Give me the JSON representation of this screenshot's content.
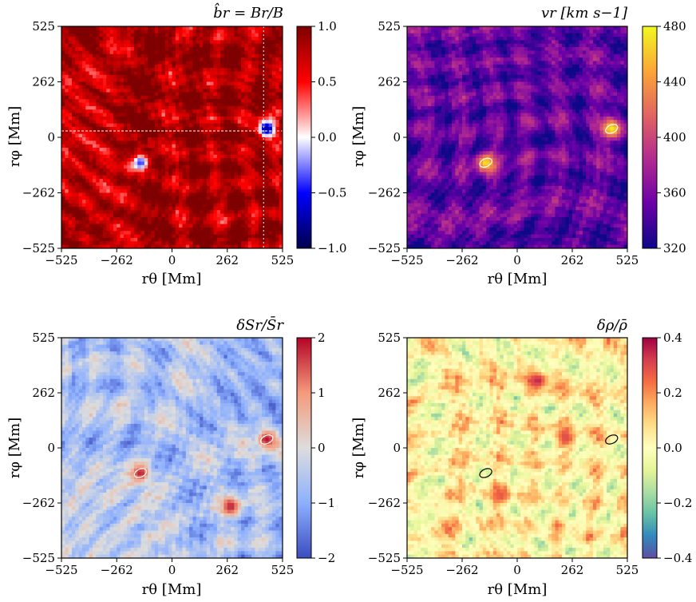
{
  "figure": {
    "panels": [
      {
        "title": "b̂r = Br/B",
        "xlabel": "rθ [Mm]",
        "ylabel": "rφ [Mm]",
        "colorbar": {
          "colormap": "seismic",
          "colors": [
            "#00004c",
            "#0000ff",
            "#ffffff",
            "#ff0000",
            "#7f0000"
          ],
          "ticks": [
            "1.0",
            "0.5",
            "0.0",
            "−0.5",
            "−1.0"
          ],
          "tick_values": [
            1.0,
            0.5,
            0.0,
            -0.5,
            -1.0
          ]
        }
      },
      {
        "title": "vr [km s−1]",
        "xlabel": "rθ [Mm]",
        "ylabel": "rφ [Mm]",
        "colorbar": {
          "colormap": "plasma",
          "colors": [
            "#0d0887",
            "#6a00a8",
            "#b12a90",
            "#e16462",
            "#fca636",
            "#f0f921"
          ],
          "ticks": [
            "480",
            "440",
            "400",
            "360",
            "320"
          ],
          "tick_values": [
            480,
            440,
            400,
            360,
            320
          ]
        }
      },
      {
        "title": "δSr/S̄r",
        "xlabel": "rθ [Mm]",
        "ylabel": "rφ [Mm]",
        "colorbar": {
          "colormap": "coolwarm",
          "colors": [
            "#3b4cc0",
            "#8db0fe",
            "#dddddd",
            "#f49a7b",
            "#b40426"
          ],
          "ticks": [
            "2",
            "1",
            "0",
            "−1",
            "−2"
          ],
          "tick_values": [
            2,
            1,
            0,
            -1,
            -2
          ]
        }
      },
      {
        "title": "δρ/ρ̄",
        "xlabel": "rθ [Mm]",
        "ylabel": "rφ [Mm]",
        "colorbar": {
          "colormap": "Spectral_r",
          "colors": [
            "#5e4fa2",
            "#3288bd",
            "#66c2a5",
            "#abdda4",
            "#e6f598",
            "#ffffbf",
            "#fee08b",
            "#fdae61",
            "#f46d43",
            "#d53e4f",
            "#9e0142"
          ],
          "ticks": [
            "0.4",
            "0.2",
            "0.0",
            "−0.2",
            "−0.4"
          ],
          "tick_values": [
            0.4,
            0.2,
            0.0,
            -0.2,
            -0.4
          ]
        }
      }
    ]
  },
  "chart_data": [
    {
      "type": "heatmap",
      "title": "b̂r = Br/B",
      "xlabel": "rθ [Mm]",
      "ylabel": "rφ [Mm]",
      "xlim": [
        -525,
        525
      ],
      "ylim": [
        -525,
        525
      ],
      "x_ticks": [
        "−525",
        "−262",
        "0",
        "262",
        "525"
      ],
      "y_ticks": [
        "525",
        "262",
        "0",
        "−262",
        "−525"
      ],
      "clim": [
        -1.0,
        1.0
      ],
      "background_value": 0.85,
      "features": [
        {
          "x": 450,
          "y": 40,
          "value": -0.8
        },
        {
          "x": -150,
          "y": -120,
          "value": -0.4
        }
      ],
      "reference_lines": {
        "horizontal_y": 30,
        "vertical_x": 435
      }
    },
    {
      "type": "heatmap",
      "title": "vr [km s−1]",
      "xlabel": "rθ [Mm]",
      "ylabel": "rφ [Mm]",
      "xlim": [
        -525,
        525
      ],
      "ylim": [
        -525,
        525
      ],
      "x_ticks": [
        "−525",
        "−262",
        "0",
        "262",
        "525"
      ],
      "y_ticks": [
        "525",
        "262",
        "0",
        "−262",
        "−525"
      ],
      "clim": [
        320,
        480
      ],
      "background_value": 350,
      "features": [
        {
          "x": 450,
          "y": 40,
          "value": 475
        },
        {
          "x": -150,
          "y": -120,
          "value": 470
        }
      ]
    },
    {
      "type": "heatmap",
      "title": "δSr/S̄r",
      "xlabel": "rθ [Mm]",
      "ylabel": "rφ [Mm]",
      "xlim": [
        -525,
        525
      ],
      "ylim": [
        -525,
        525
      ],
      "x_ticks": [
        "−525",
        "−262",
        "0",
        "262",
        "525"
      ],
      "y_ticks": [
        "525",
        "262",
        "0",
        "−262",
        "−525"
      ],
      "clim": [
        -2,
        2
      ],
      "background_value": -0.6,
      "features": [
        {
          "x": 450,
          "y": 40,
          "value": 1.9
        },
        {
          "x": -150,
          "y": -120,
          "value": 1.8
        },
        {
          "x": 280,
          "y": -280,
          "value": 1.8
        }
      ]
    },
    {
      "type": "heatmap",
      "title": "δρ/ρ̄",
      "xlabel": "rθ [Mm]",
      "ylabel": "rφ [Mm]",
      "xlim": [
        -525,
        525
      ],
      "ylim": [
        -525,
        525
      ],
      "x_ticks": [
        "−525",
        "−262",
        "0",
        "262",
        "525"
      ],
      "y_ticks": [
        "525",
        "262",
        "0",
        "−262",
        "−525"
      ],
      "clim": [
        -0.4,
        0.4
      ],
      "background_value": 0.03,
      "features": [
        {
          "x": 100,
          "y": 320,
          "value": 0.35
        },
        {
          "x": 230,
          "y": 50,
          "value": 0.3
        },
        {
          "x": -80,
          "y": -230,
          "value": 0.28
        }
      ],
      "contours": [
        {
          "x": 450,
          "y": 40
        },
        {
          "x": -150,
          "y": -120
        }
      ]
    }
  ]
}
